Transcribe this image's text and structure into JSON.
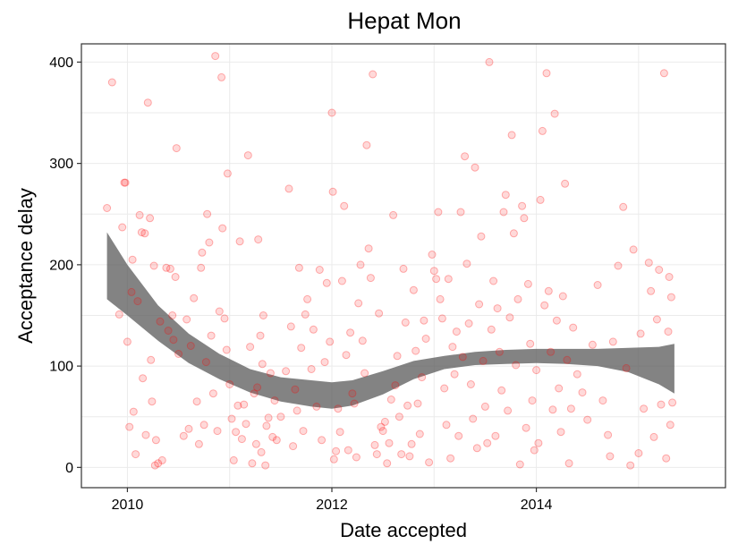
{
  "chart_data": {
    "type": "scatter",
    "title": "Hepat Mon",
    "xlabel": "Date accepted",
    "ylabel": "Acceptance delay",
    "xlim": [
      2009.55,
      2015.85
    ],
    "ylim": [
      -20,
      418
    ],
    "x_ticks": [
      2010,
      2012,
      2014
    ],
    "x_tick_labels": [
      "2010",
      "2012",
      "2014"
    ],
    "y_ticks": [
      0,
      100,
      200,
      300,
      400
    ],
    "y_tick_labels": [
      "0",
      "100",
      "200",
      "300",
      "400"
    ],
    "grid": true,
    "colors": {
      "points": "#ff0000",
      "smooth_band": "#595959",
      "grid": "#ebebeb",
      "border": "#333333"
    },
    "smooth": {
      "x": [
        2009.8,
        2010.0,
        2010.3,
        2010.6,
        2010.9,
        2011.2,
        2011.5,
        2011.8,
        2012.0,
        2012.2,
        2012.5,
        2012.8,
        2013.1,
        2013.4,
        2013.7,
        2014.0,
        2014.3,
        2014.6,
        2014.9,
        2015.2,
        2015.35
      ],
      "lower": [
        166,
        150,
        125,
        103,
        87,
        74,
        65,
        60,
        58,
        61,
        72,
        87,
        97,
        101,
        102,
        103,
        102,
        100,
        94,
        82,
        73
      ],
      "upper": [
        232,
        200,
        160,
        132,
        112,
        97,
        89,
        86,
        84,
        86,
        95,
        105,
        110,
        114,
        116,
        117,
        117,
        117,
        118,
        119,
        122
      ]
    },
    "points": [
      {
        "x": 2009.8,
        "y": 256
      },
      {
        "x": 2009.85,
        "y": 380
      },
      {
        "x": 2009.92,
        "y": 151
      },
      {
        "x": 2009.95,
        "y": 237
      },
      {
        "x": 2009.97,
        "y": 281
      },
      {
        "x": 2009.98,
        "y": 281
      },
      {
        "x": 2010.0,
        "y": 124
      },
      {
        "x": 2010.02,
        "y": 40
      },
      {
        "x": 2010.04,
        "y": 173
      },
      {
        "x": 2010.05,
        "y": 205
      },
      {
        "x": 2010.06,
        "y": 55
      },
      {
        "x": 2010.08,
        "y": 13
      },
      {
        "x": 2010.1,
        "y": 164
      },
      {
        "x": 2010.12,
        "y": 249
      },
      {
        "x": 2010.14,
        "y": 232
      },
      {
        "x": 2010.15,
        "y": 88
      },
      {
        "x": 2010.17,
        "y": 231
      },
      {
        "x": 2010.18,
        "y": 32
      },
      {
        "x": 2010.2,
        "y": 360
      },
      {
        "x": 2010.22,
        "y": 246
      },
      {
        "x": 2010.23,
        "y": 106
      },
      {
        "x": 2010.24,
        "y": 65
      },
      {
        "x": 2010.26,
        "y": 199
      },
      {
        "x": 2010.27,
        "y": 2
      },
      {
        "x": 2010.28,
        "y": 27
      },
      {
        "x": 2010.3,
        "y": 4
      },
      {
        "x": 2010.32,
        "y": 144
      },
      {
        "x": 2010.34,
        "y": 7
      },
      {
        "x": 2010.38,
        "y": 197
      },
      {
        "x": 2010.4,
        "y": 135
      },
      {
        "x": 2010.42,
        "y": 196
      },
      {
        "x": 2010.44,
        "y": 150
      },
      {
        "x": 2010.45,
        "y": 126
      },
      {
        "x": 2010.47,
        "y": 188
      },
      {
        "x": 2010.48,
        "y": 315
      },
      {
        "x": 2010.5,
        "y": 112
      },
      {
        "x": 2010.55,
        "y": 31
      },
      {
        "x": 2010.58,
        "y": 146
      },
      {
        "x": 2010.6,
        "y": 38
      },
      {
        "x": 2010.62,
        "y": 120
      },
      {
        "x": 2010.65,
        "y": 167
      },
      {
        "x": 2010.68,
        "y": 65
      },
      {
        "x": 2010.7,
        "y": 23
      },
      {
        "x": 2010.72,
        "y": 197
      },
      {
        "x": 2010.73,
        "y": 212
      },
      {
        "x": 2010.75,
        "y": 42
      },
      {
        "x": 2010.77,
        "y": 104
      },
      {
        "x": 2010.78,
        "y": 250
      },
      {
        "x": 2010.8,
        "y": 222
      },
      {
        "x": 2010.82,
        "y": 130
      },
      {
        "x": 2010.84,
        "y": 73
      },
      {
        "x": 2010.86,
        "y": 406
      },
      {
        "x": 2010.88,
        "y": 36
      },
      {
        "x": 2010.9,
        "y": 154
      },
      {
        "x": 2010.92,
        "y": 385
      },
      {
        "x": 2010.93,
        "y": 236
      },
      {
        "x": 2010.95,
        "y": 147
      },
      {
        "x": 2010.97,
        "y": 116
      },
      {
        "x": 2010.98,
        "y": 290
      },
      {
        "x": 2011.0,
        "y": 82
      },
      {
        "x": 2011.02,
        "y": 48
      },
      {
        "x": 2011.04,
        "y": 7
      },
      {
        "x": 2011.06,
        "y": 35
      },
      {
        "x": 2011.08,
        "y": 61
      },
      {
        "x": 2011.1,
        "y": 223
      },
      {
        "x": 2011.12,
        "y": 28
      },
      {
        "x": 2011.14,
        "y": 62
      },
      {
        "x": 2011.16,
        "y": 43
      },
      {
        "x": 2011.18,
        "y": 308
      },
      {
        "x": 2011.2,
        "y": 119
      },
      {
        "x": 2011.22,
        "y": 4
      },
      {
        "x": 2011.24,
        "y": 73
      },
      {
        "x": 2011.26,
        "y": 23
      },
      {
        "x": 2011.27,
        "y": 79
      },
      {
        "x": 2011.28,
        "y": 225
      },
      {
        "x": 2011.3,
        "y": 130
      },
      {
        "x": 2011.31,
        "y": 15
      },
      {
        "x": 2011.32,
        "y": 102
      },
      {
        "x": 2011.33,
        "y": 150
      },
      {
        "x": 2011.35,
        "y": 2
      },
      {
        "x": 2011.36,
        "y": 41
      },
      {
        "x": 2011.38,
        "y": 49
      },
      {
        "x": 2011.4,
        "y": 93
      },
      {
        "x": 2011.42,
        "y": 30
      },
      {
        "x": 2011.44,
        "y": 66
      },
      {
        "x": 2011.46,
        "y": 27
      },
      {
        "x": 2011.5,
        "y": 50
      },
      {
        "x": 2011.55,
        "y": 95
      },
      {
        "x": 2011.58,
        "y": 275
      },
      {
        "x": 2011.6,
        "y": 139
      },
      {
        "x": 2011.62,
        "y": 21
      },
      {
        "x": 2011.64,
        "y": 77
      },
      {
        "x": 2011.66,
        "y": 56
      },
      {
        "x": 2011.68,
        "y": 197
      },
      {
        "x": 2011.7,
        "y": 118
      },
      {
        "x": 2011.72,
        "y": 36
      },
      {
        "x": 2011.74,
        "y": 151
      },
      {
        "x": 2011.76,
        "y": 166
      },
      {
        "x": 2011.8,
        "y": 97
      },
      {
        "x": 2011.82,
        "y": 136
      },
      {
        "x": 2011.85,
        "y": 60
      },
      {
        "x": 2011.88,
        "y": 195
      },
      {
        "x": 2011.9,
        "y": 27
      },
      {
        "x": 2011.93,
        "y": 104
      },
      {
        "x": 2011.95,
        "y": 182
      },
      {
        "x": 2011.98,
        "y": 124
      },
      {
        "x": 2012.0,
        "y": 350
      },
      {
        "x": 2012.01,
        "y": 272
      },
      {
        "x": 2012.02,
        "y": 8
      },
      {
        "x": 2012.04,
        "y": 16
      },
      {
        "x": 2012.06,
        "y": 58
      },
      {
        "x": 2012.08,
        "y": 35
      },
      {
        "x": 2012.1,
        "y": 184
      },
      {
        "x": 2012.12,
        "y": 258
      },
      {
        "x": 2012.14,
        "y": 111
      },
      {
        "x": 2012.16,
        "y": 17
      },
      {
        "x": 2012.18,
        "y": 133
      },
      {
        "x": 2012.2,
        "y": 73
      },
      {
        "x": 2012.22,
        "y": 63
      },
      {
        "x": 2012.24,
        "y": 10
      },
      {
        "x": 2012.26,
        "y": 162
      },
      {
        "x": 2012.28,
        "y": 200
      },
      {
        "x": 2012.3,
        "y": 125
      },
      {
        "x": 2012.32,
        "y": 93
      },
      {
        "x": 2012.34,
        "y": 318
      },
      {
        "x": 2012.36,
        "y": 216
      },
      {
        "x": 2012.38,
        "y": 187
      },
      {
        "x": 2012.4,
        "y": 388
      },
      {
        "x": 2012.42,
        "y": 22
      },
      {
        "x": 2012.44,
        "y": 13
      },
      {
        "x": 2012.46,
        "y": 152
      },
      {
        "x": 2012.48,
        "y": 40
      },
      {
        "x": 2012.5,
        "y": 36
      },
      {
        "x": 2012.52,
        "y": 45
      },
      {
        "x": 2012.54,
        "y": 4
      },
      {
        "x": 2012.56,
        "y": 24
      },
      {
        "x": 2012.58,
        "y": 67
      },
      {
        "x": 2012.6,
        "y": 249
      },
      {
        "x": 2012.62,
        "y": 81
      },
      {
        "x": 2012.64,
        "y": 110
      },
      {
        "x": 2012.66,
        "y": 50
      },
      {
        "x": 2012.68,
        "y": 13
      },
      {
        "x": 2012.7,
        "y": 196
      },
      {
        "x": 2012.72,
        "y": 143
      },
      {
        "x": 2012.74,
        "y": 61
      },
      {
        "x": 2012.76,
        "y": 11
      },
      {
        "x": 2012.78,
        "y": 23
      },
      {
        "x": 2012.8,
        "y": 175
      },
      {
        "x": 2012.82,
        "y": 115
      },
      {
        "x": 2012.84,
        "y": 63
      },
      {
        "x": 2012.86,
        "y": 33
      },
      {
        "x": 2012.88,
        "y": 89
      },
      {
        "x": 2012.9,
        "y": 145
      },
      {
        "x": 2012.92,
        "y": 127
      },
      {
        "x": 2012.95,
        "y": 5
      },
      {
        "x": 2012.98,
        "y": 210
      },
      {
        "x": 2013.0,
        "y": 194
      },
      {
        "x": 2013.02,
        "y": 186
      },
      {
        "x": 2013.04,
        "y": 252
      },
      {
        "x": 2013.06,
        "y": 166
      },
      {
        "x": 2013.08,
        "y": 147
      },
      {
        "x": 2013.1,
        "y": 78
      },
      {
        "x": 2013.12,
        "y": 42
      },
      {
        "x": 2013.14,
        "y": 186
      },
      {
        "x": 2013.16,
        "y": 9
      },
      {
        "x": 2013.18,
        "y": 119
      },
      {
        "x": 2013.2,
        "y": 92
      },
      {
        "x": 2013.22,
        "y": 134
      },
      {
        "x": 2013.24,
        "y": 31
      },
      {
        "x": 2013.26,
        "y": 252
      },
      {
        "x": 2013.28,
        "y": 109
      },
      {
        "x": 2013.3,
        "y": 307
      },
      {
        "x": 2013.32,
        "y": 201
      },
      {
        "x": 2013.34,
        "y": 142
      },
      {
        "x": 2013.36,
        "y": 82
      },
      {
        "x": 2013.38,
        "y": 48
      },
      {
        "x": 2013.4,
        "y": 296
      },
      {
        "x": 2013.42,
        "y": 19
      },
      {
        "x": 2013.44,
        "y": 161
      },
      {
        "x": 2013.46,
        "y": 228
      },
      {
        "x": 2013.48,
        "y": 105
      },
      {
        "x": 2013.5,
        "y": 60
      },
      {
        "x": 2013.52,
        "y": 24
      },
      {
        "x": 2013.54,
        "y": 400
      },
      {
        "x": 2013.56,
        "y": 136
      },
      {
        "x": 2013.58,
        "y": 184
      },
      {
        "x": 2013.6,
        "y": 31
      },
      {
        "x": 2013.62,
        "y": 157
      },
      {
        "x": 2013.64,
        "y": 114
      },
      {
        "x": 2013.66,
        "y": 76
      },
      {
        "x": 2013.68,
        "y": 252
      },
      {
        "x": 2013.7,
        "y": 269
      },
      {
        "x": 2013.72,
        "y": 56
      },
      {
        "x": 2013.74,
        "y": 148
      },
      {
        "x": 2013.76,
        "y": 328
      },
      {
        "x": 2013.78,
        "y": 231
      },
      {
        "x": 2013.8,
        "y": 101
      },
      {
        "x": 2013.82,
        "y": 166
      },
      {
        "x": 2013.84,
        "y": 3
      },
      {
        "x": 2013.86,
        "y": 258
      },
      {
        "x": 2013.88,
        "y": 246
      },
      {
        "x": 2013.9,
        "y": 39
      },
      {
        "x": 2013.92,
        "y": 181
      },
      {
        "x": 2013.94,
        "y": 122
      },
      {
        "x": 2013.96,
        "y": 66
      },
      {
        "x": 2013.98,
        "y": 17
      },
      {
        "x": 2014.0,
        "y": 96
      },
      {
        "x": 2014.02,
        "y": 24
      },
      {
        "x": 2014.04,
        "y": 264
      },
      {
        "x": 2014.06,
        "y": 332
      },
      {
        "x": 2014.08,
        "y": 160
      },
      {
        "x": 2014.1,
        "y": 389
      },
      {
        "x": 2014.12,
        "y": 174
      },
      {
        "x": 2014.14,
        "y": 114
      },
      {
        "x": 2014.16,
        "y": 57
      },
      {
        "x": 2014.18,
        "y": 349
      },
      {
        "x": 2014.2,
        "y": 145
      },
      {
        "x": 2014.22,
        "y": 78
      },
      {
        "x": 2014.24,
        "y": 35
      },
      {
        "x": 2014.26,
        "y": 169
      },
      {
        "x": 2014.28,
        "y": 280
      },
      {
        "x": 2014.3,
        "y": 106
      },
      {
        "x": 2014.32,
        "y": 4
      },
      {
        "x": 2014.34,
        "y": 58
      },
      {
        "x": 2014.36,
        "y": 138
      },
      {
        "x": 2014.4,
        "y": 92
      },
      {
        "x": 2014.45,
        "y": 74
      },
      {
        "x": 2014.5,
        "y": 47
      },
      {
        "x": 2014.55,
        "y": 121
      },
      {
        "x": 2014.6,
        "y": 180
      },
      {
        "x": 2014.65,
        "y": 66
      },
      {
        "x": 2014.7,
        "y": 32
      },
      {
        "x": 2014.72,
        "y": 11
      },
      {
        "x": 2014.75,
        "y": 124
      },
      {
        "x": 2014.8,
        "y": 199
      },
      {
        "x": 2014.85,
        "y": 257
      },
      {
        "x": 2014.88,
        "y": 98
      },
      {
        "x": 2014.92,
        "y": 2
      },
      {
        "x": 2014.95,
        "y": 215
      },
      {
        "x": 2015.0,
        "y": 14
      },
      {
        "x": 2015.02,
        "y": 132
      },
      {
        "x": 2015.05,
        "y": 58
      },
      {
        "x": 2015.1,
        "y": 202
      },
      {
        "x": 2015.12,
        "y": 174
      },
      {
        "x": 2015.15,
        "y": 30
      },
      {
        "x": 2015.18,
        "y": 146
      },
      {
        "x": 2015.2,
        "y": 195
      },
      {
        "x": 2015.22,
        "y": 62
      },
      {
        "x": 2015.25,
        "y": 389
      },
      {
        "x": 2015.27,
        "y": 9
      },
      {
        "x": 2015.29,
        "y": 134
      },
      {
        "x": 2015.3,
        "y": 188
      },
      {
        "x": 2015.31,
        "y": 42
      },
      {
        "x": 2015.32,
        "y": 168
      },
      {
        "x": 2015.33,
        "y": 64
      }
    ]
  }
}
